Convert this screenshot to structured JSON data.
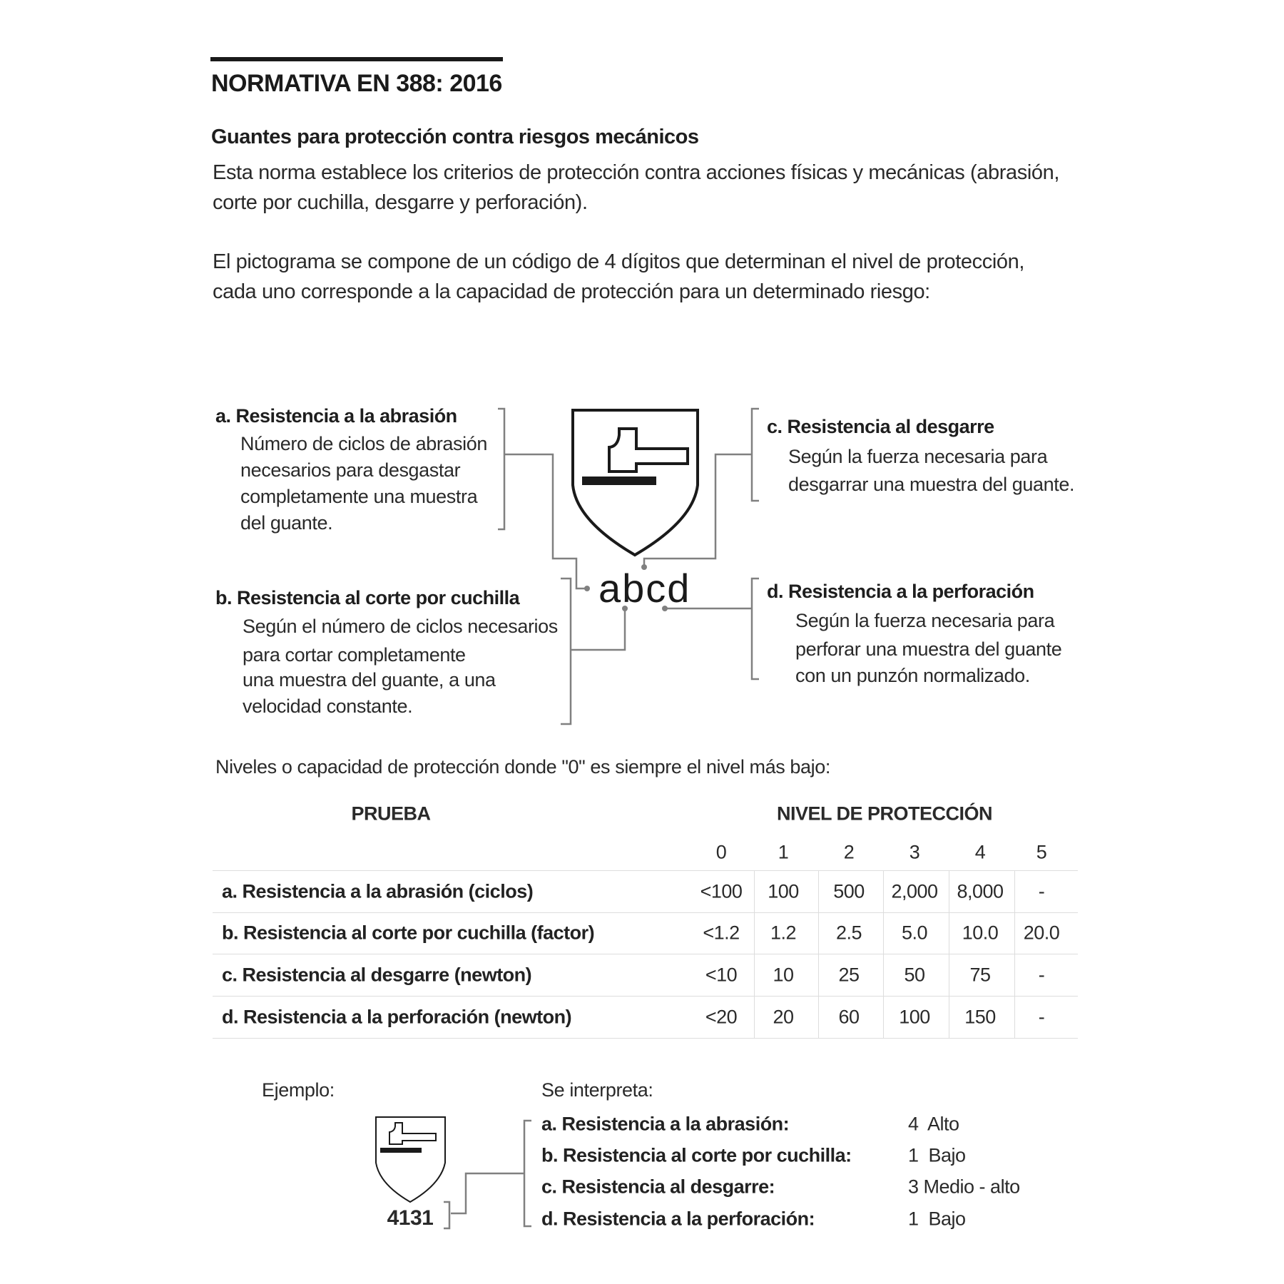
{
  "title": "NORMATIVA EN 388: 2016",
  "subtitle": "Guantes para protección contra riesgos mecánicos",
  "intro": [
    "Esta norma establece los criterios de protección contra acciones físicas y mecánicas (abrasión,",
    "corte por cuchilla, desgarre y perforación)."
  ],
  "pictogram_intro": [
    "El pictograma se compone de un código de 4 dígitos que determinan el nivel de protección,",
    "cada uno corresponde a la capacidad de protección para un determinado riesgo:"
  ],
  "diagram": {
    "code": "abcd",
    "a": {
      "title": "a. Resistencia a la abrasión",
      "lines": [
        "Número de ciclos de abrasión",
        "necesarios para desgastar",
        "completamente una muestra",
        "del guante."
      ]
    },
    "b": {
      "title": "b. Resistencia al corte por cuchilla",
      "lines": [
        "Según el número de ciclos necesarios",
        "para cortar completamente",
        "una muestra del guante, a una",
        "velocidad constante."
      ]
    },
    "c": {
      "title": "c. Resistencia al desgarre",
      "lines": [
        "Según la fuerza necesaria para",
        "desgarrar una muestra del guante."
      ]
    },
    "d": {
      "title": "d.  Resistencia a la perforación",
      "lines": [
        "Según la fuerza necesaria para",
        "perforar una muestra del guante",
        "con un punzón normalizado."
      ]
    }
  },
  "levels_intro": "Niveles o capacidad de protección donde \"0\" es siempre el nivel más bajo:",
  "table": {
    "header_test": "PRUEBA",
    "header_level": "NIVEL DE PROTECCIÓN",
    "levels": [
      "0",
      "1",
      "2",
      "3",
      "4",
      "5"
    ],
    "rows": [
      {
        "label": "a. Resistencia a la abrasión (ciclos)",
        "values": [
          "<100",
          "100",
          "500",
          "2,000",
          "8,000",
          "-"
        ]
      },
      {
        "label": "b. Resistencia al corte por cuchilla (factor)",
        "values": [
          "<1.2",
          "1.2",
          "2.5",
          "5.0",
          "10.0",
          "20.0"
        ]
      },
      {
        "label": "c. Resistencia al desgarre (newton)",
        "values": [
          "<10",
          "10",
          "25",
          "50",
          "75",
          "-"
        ]
      },
      {
        "label": "d. Resistencia a la perforación (newton)",
        "values": [
          "<20",
          "20",
          "60",
          "100",
          "150",
          "-"
        ]
      }
    ]
  },
  "example": {
    "label": "Ejemplo:",
    "code": "4131",
    "interpret_label": "Se interpreta:",
    "rows": [
      {
        "label": "a. Resistencia a la abrasión:",
        "value": "4  Alto"
      },
      {
        "label": "b. Resistencia al corte por cuchilla:",
        "value": "1  Bajo"
      },
      {
        "label": "c. Resistencia al desgarre:",
        "value": "3 Medio - alto"
      },
      {
        "label": "d. Resistencia a la perforación:",
        "value": "1  Bajo"
      }
    ]
  },
  "colors": {
    "text": "#222222",
    "connector": "#808080",
    "rule": "#dddddd"
  }
}
